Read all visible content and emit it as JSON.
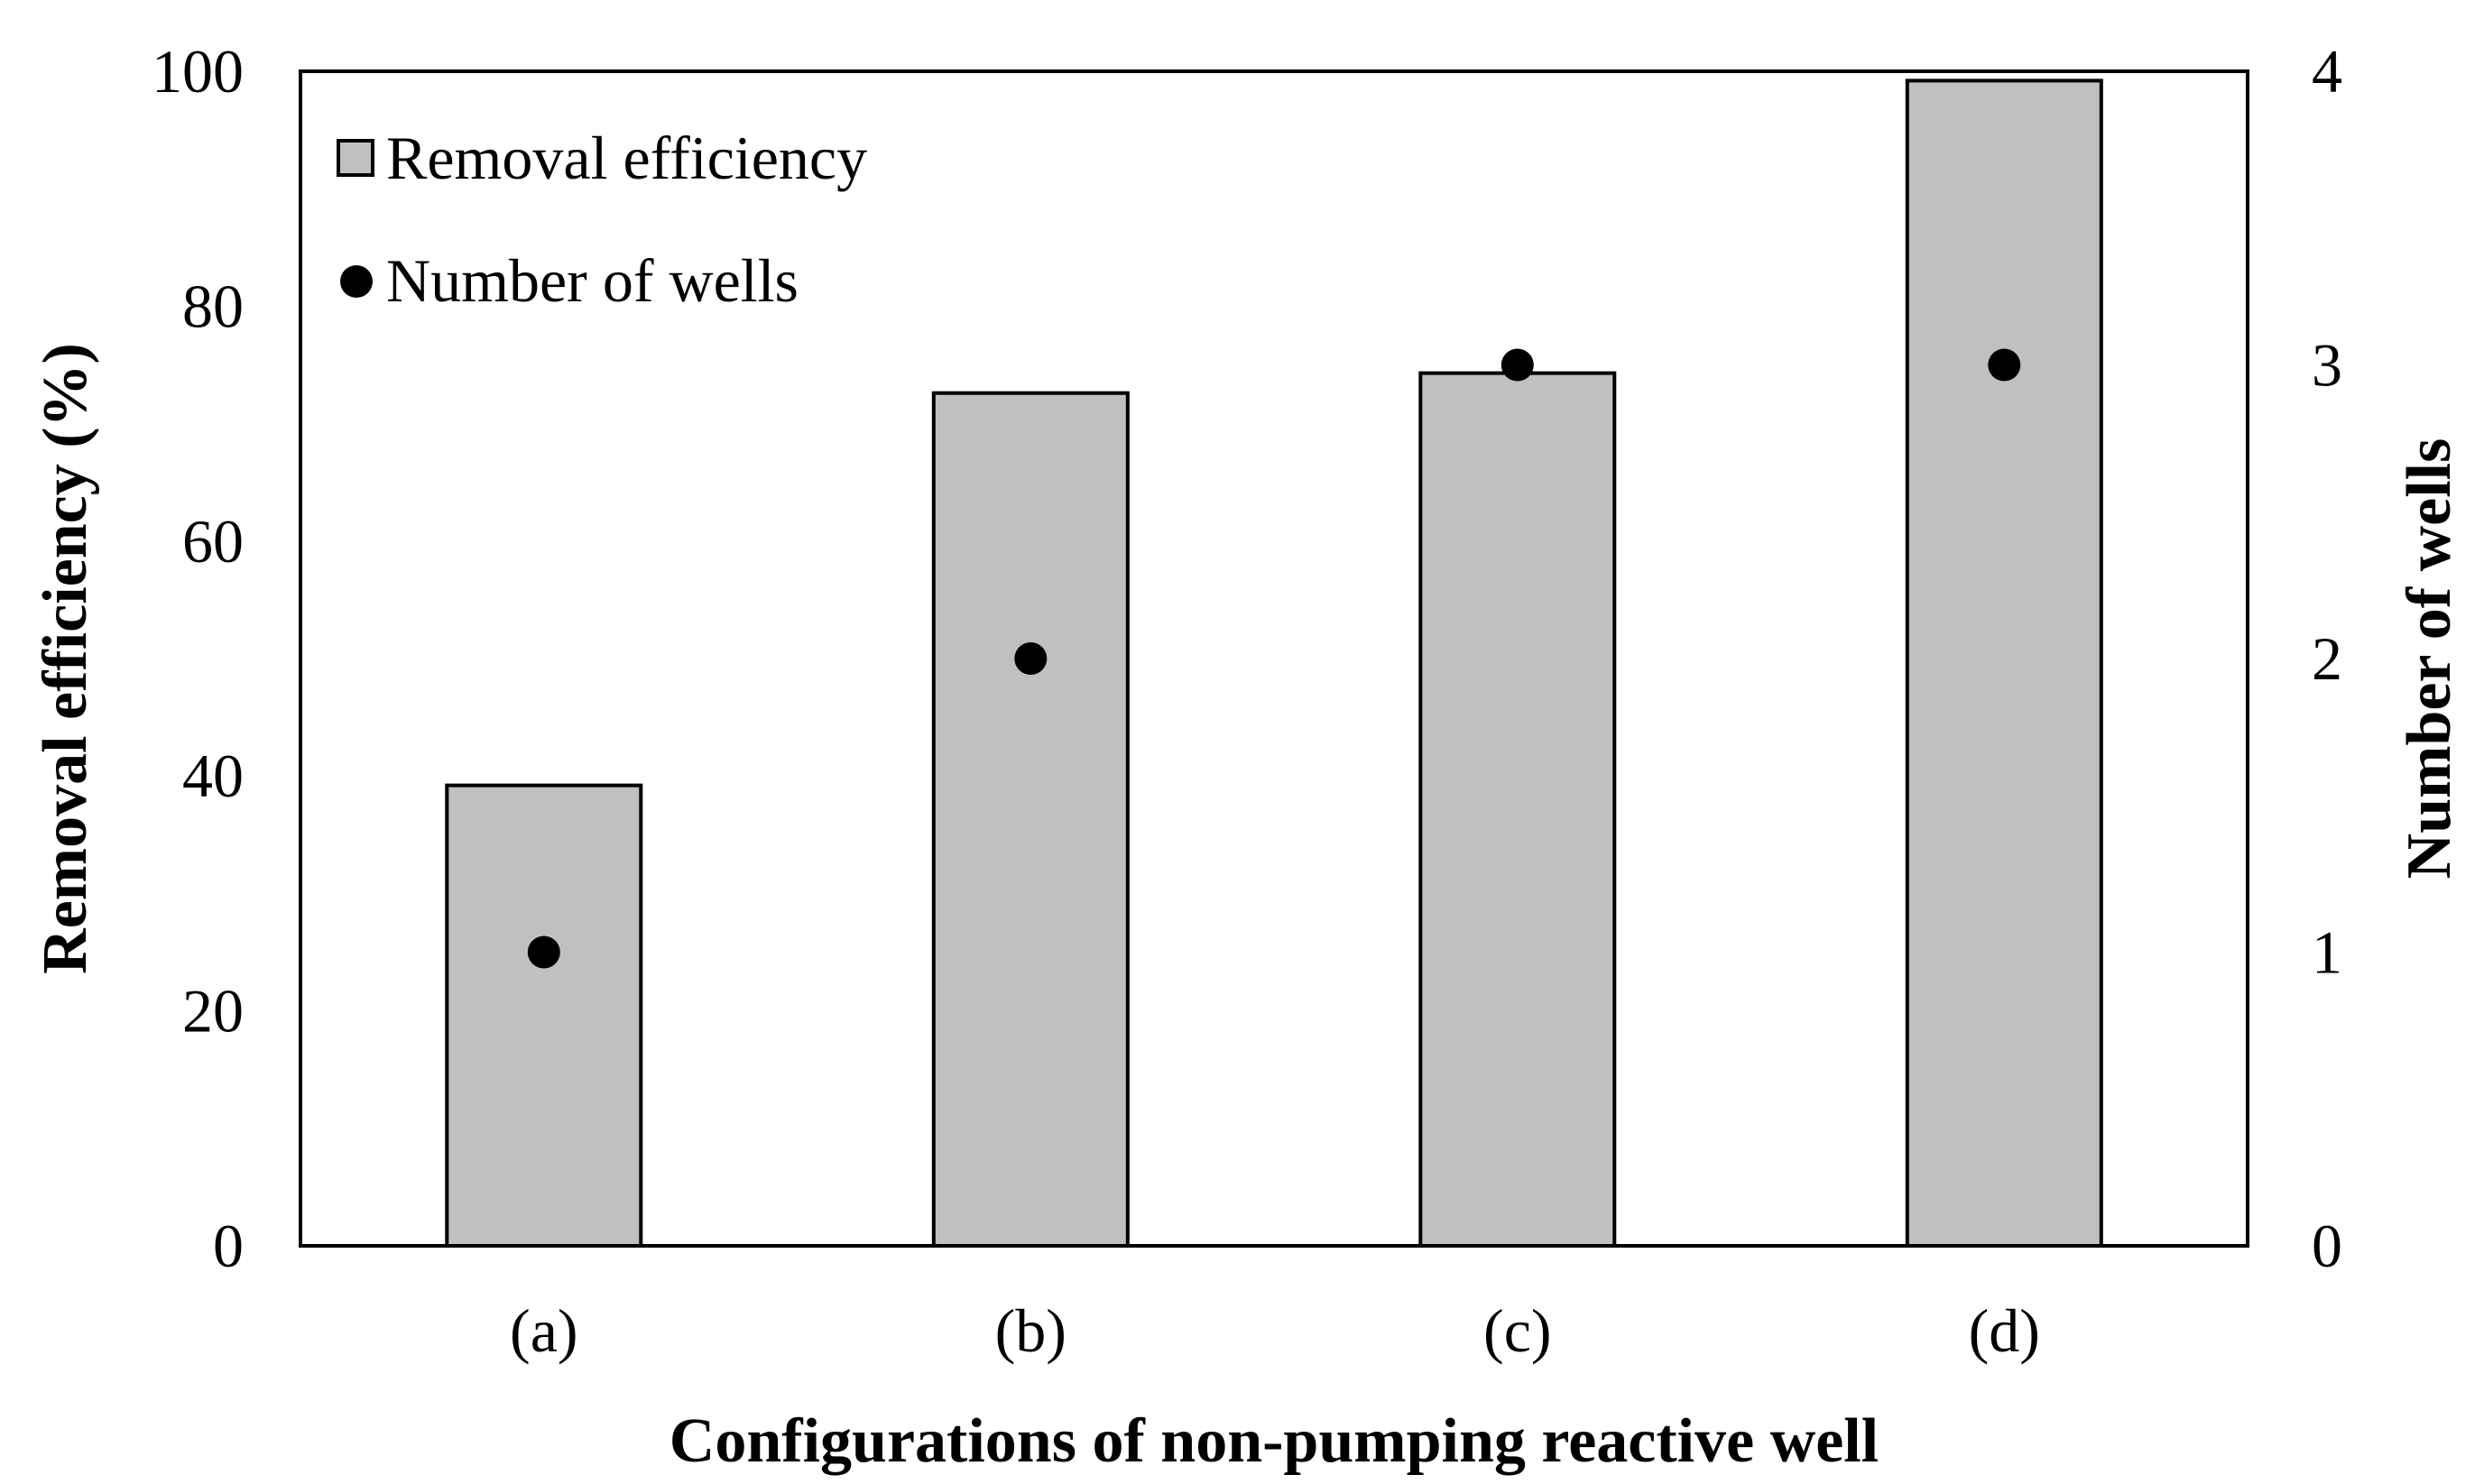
{
  "chart_data": {
    "type": "bar",
    "title": "",
    "xlabel": "Configurations of non-pumping reactive well",
    "ylabel": "Removal efficiency (%)",
    "y2label": "Number of wells",
    "categories": [
      "(a)",
      "(b)",
      "(c)",
      "(d)"
    ],
    "ylim": [
      0,
      100
    ],
    "yticks": [
      0,
      20,
      40,
      60,
      80,
      100
    ],
    "y2lim": [
      0,
      4
    ],
    "y2ticks": [
      0,
      1,
      2,
      3,
      4
    ],
    "grid": false,
    "legend_position": "top-left",
    "series": [
      {
        "name": "Removal efficiency",
        "type": "bar",
        "axis": "left",
        "values": [
          39.2,
          72.6,
          74.3,
          99.2
        ],
        "color": "#c0c0c0"
      },
      {
        "name": "Number of wells",
        "type": "scatter",
        "axis": "right",
        "values": [
          1,
          2,
          3,
          3
        ],
        "color": "#000000"
      }
    ]
  }
}
